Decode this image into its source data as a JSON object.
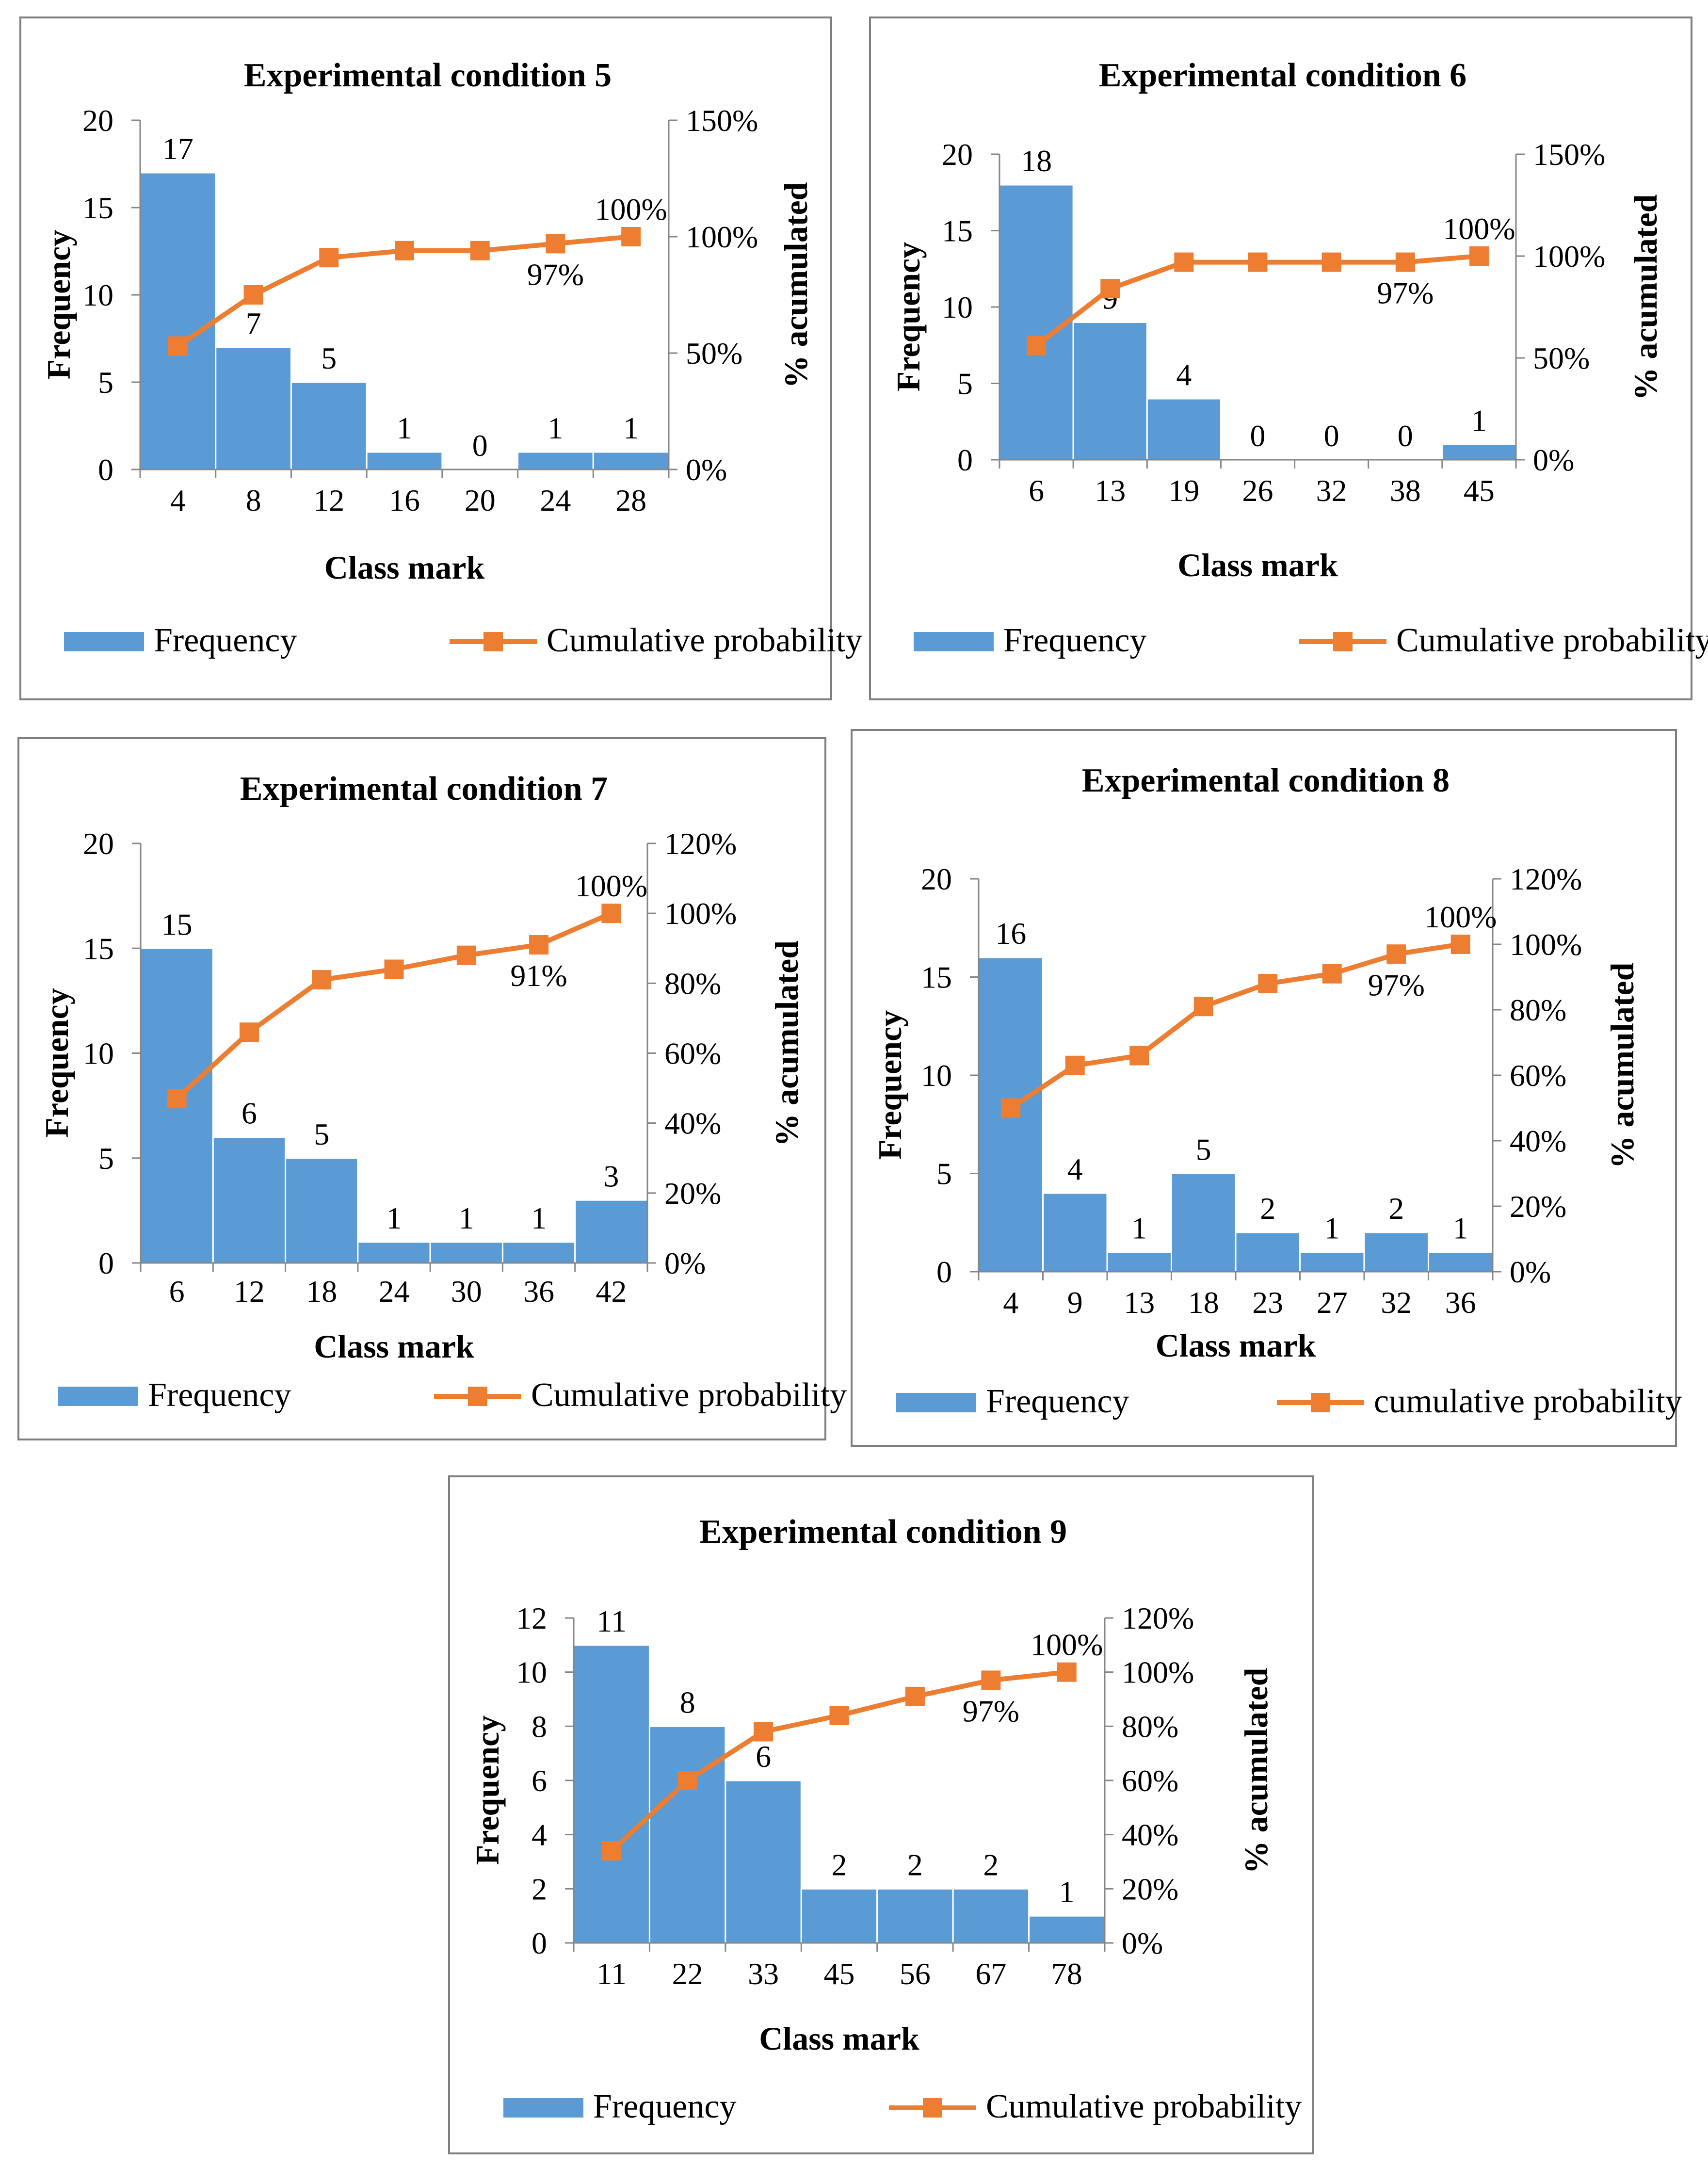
{
  "chart_data": [
    {
      "type": "bar",
      "title": "Experimental condition 5",
      "xlabel": "Class mark",
      "ylabel": "Frequency",
      "y2label": "% acumulated",
      "categories": [
        "4",
        "8",
        "12",
        "16",
        "20",
        "24",
        "28"
      ],
      "ylim": [
        0,
        20
      ],
      "yticks": [
        "0",
        "5",
        "10",
        "15",
        "20"
      ],
      "y2lim": [
        0,
        1.5
      ],
      "y2ticks": [
        "0%",
        "50%",
        "100%",
        "150%"
      ],
      "series": [
        {
          "name": "Frequency",
          "kind": "bar",
          "color": "#5b9bd5",
          "values": [
            17,
            7,
            5,
            1,
            0,
            1,
            1
          ],
          "labels": [
            "17",
            "7",
            "5",
            "1",
            "0",
            "1",
            "1"
          ]
        },
        {
          "name": "Cumulative probability",
          "kind": "line",
          "color": "#ed7d31",
          "values": [
            0.53,
            0.75,
            0.91,
            0.94,
            0.94,
            0.97,
            1.0
          ],
          "point_labels": [
            {
              "index": 5,
              "text": "97%"
            },
            {
              "index": 6,
              "text": "100%"
            }
          ]
        }
      ],
      "legend": [
        "Frequency",
        "Cumulative probability"
      ]
    },
    {
      "type": "bar",
      "title": "Experimental condition 6",
      "xlabel": "Class mark",
      "ylabel": "Frequency",
      "y2label": "% acumulated",
      "categories": [
        "6",
        "13",
        "19",
        "26",
        "32",
        "38",
        "45"
      ],
      "ylim": [
        0,
        20
      ],
      "yticks": [
        "0",
        "5",
        "10",
        "15",
        "20"
      ],
      "y2lim": [
        0,
        1.5
      ],
      "y2ticks": [
        "0%",
        "50%",
        "100%",
        "150%"
      ],
      "series": [
        {
          "name": "Frequency",
          "kind": "bar",
          "color": "#5b9bd5",
          "values": [
            18,
            9,
            4,
            0,
            0,
            0,
            1
          ],
          "labels": [
            "18",
            "9",
            "4",
            "0",
            "0",
            "0",
            "1"
          ]
        },
        {
          "name": "Cumulative probability",
          "kind": "line",
          "color": "#ed7d31",
          "values": [
            0.56,
            0.84,
            0.97,
            0.97,
            0.97,
            0.97,
            1.0
          ],
          "point_labels": [
            {
              "index": 5,
              "text": "97%"
            },
            {
              "index": 6,
              "text": "100%"
            }
          ]
        }
      ],
      "legend": [
        "Frequency",
        "Cumulative probability"
      ]
    },
    {
      "type": "bar",
      "title": "Experimental condition 7",
      "xlabel": "Class mark",
      "ylabel": "Frequency",
      "y2label": "% acumulated",
      "categories": [
        "6",
        "12",
        "18",
        "24",
        "30",
        "36",
        "42"
      ],
      "ylim": [
        0,
        20
      ],
      "yticks": [
        "0",
        "5",
        "10",
        "15",
        "20"
      ],
      "y2lim": [
        0,
        1.2
      ],
      "y2ticks": [
        "0%",
        "20%",
        "40%",
        "60%",
        "80%",
        "100%",
        "120%"
      ],
      "series": [
        {
          "name": "Frequency",
          "kind": "bar",
          "color": "#5b9bd5",
          "values": [
            15,
            6,
            5,
            1,
            1,
            1,
            3
          ],
          "labels": [
            "15",
            "6",
            "5",
            "1",
            "1",
            "1",
            "3"
          ]
        },
        {
          "name": "Cumulative probability",
          "kind": "line",
          "color": "#ed7d31",
          "values": [
            0.47,
            0.66,
            0.81,
            0.84,
            0.88,
            0.91,
            1.0
          ],
          "point_labels": [
            {
              "index": 5,
              "text": "91%"
            },
            {
              "index": 6,
              "text": "100%"
            }
          ]
        }
      ],
      "legend": [
        "Frequency",
        "Cumulative probability"
      ]
    },
    {
      "type": "bar",
      "title": "Experimental condition 8",
      "xlabel": "Class mark",
      "ylabel": "Frequency",
      "y2label": "% acumulated",
      "categories": [
        "4",
        "9",
        "13",
        "18",
        "23",
        "27",
        "32",
        "36"
      ],
      "ylim": [
        0,
        20
      ],
      "yticks": [
        "0",
        "5",
        "10",
        "15",
        "20"
      ],
      "y2lim": [
        0,
        1.2
      ],
      "y2ticks": [
        "0%",
        "20%",
        "40%",
        "60%",
        "80%",
        "100%",
        "120%"
      ],
      "series": [
        {
          "name": "Frequency",
          "kind": "bar",
          "color": "#5b9bd5",
          "values": [
            16,
            4,
            1,
            5,
            2,
            1,
            2,
            1
          ],
          "labels": [
            "16",
            "4",
            "1",
            "5",
            "2",
            "1",
            "2",
            "1"
          ]
        },
        {
          "name": "cumulative probability",
          "kind": "line",
          "color": "#ed7d31",
          "values": [
            0.5,
            0.63,
            0.66,
            0.81,
            0.88,
            0.91,
            0.97,
            1.0
          ],
          "point_labels": [
            {
              "index": 6,
              "text": "97%"
            },
            {
              "index": 7,
              "text": "100%"
            }
          ]
        }
      ],
      "legend": [
        "Frequency",
        "cumulative probability"
      ]
    },
    {
      "type": "bar",
      "title": "Experimental condition 9",
      "xlabel": "Class mark",
      "ylabel": "Frequency",
      "y2label": "% acumulated",
      "categories": [
        "11",
        "22",
        "33",
        "45",
        "56",
        "67",
        "78"
      ],
      "ylim": [
        0,
        12
      ],
      "yticks": [
        "0",
        "2",
        "4",
        "6",
        "8",
        "10",
        "12"
      ],
      "y2lim": [
        0,
        1.2
      ],
      "y2ticks": [
        "0%",
        "20%",
        "40%",
        "60%",
        "80%",
        "100%",
        "120%"
      ],
      "series": [
        {
          "name": "Frequency",
          "kind": "bar",
          "color": "#5b9bd5",
          "values": [
            11,
            8,
            6,
            2,
            2,
            2,
            1
          ],
          "labels": [
            "11",
            "8",
            "6",
            "2",
            "2",
            "2",
            "1"
          ]
        },
        {
          "name": "Cumulative probability",
          "kind": "line",
          "color": "#ed7d31",
          "values": [
            0.34,
            0.6,
            0.78,
            0.84,
            0.91,
            0.97,
            1.0
          ],
          "point_labels": [
            {
              "index": 5,
              "text": "97%"
            },
            {
              "index": 6,
              "text": "100%"
            }
          ]
        }
      ],
      "legend": [
        "Frequency",
        "Cumulative probability"
      ]
    }
  ]
}
